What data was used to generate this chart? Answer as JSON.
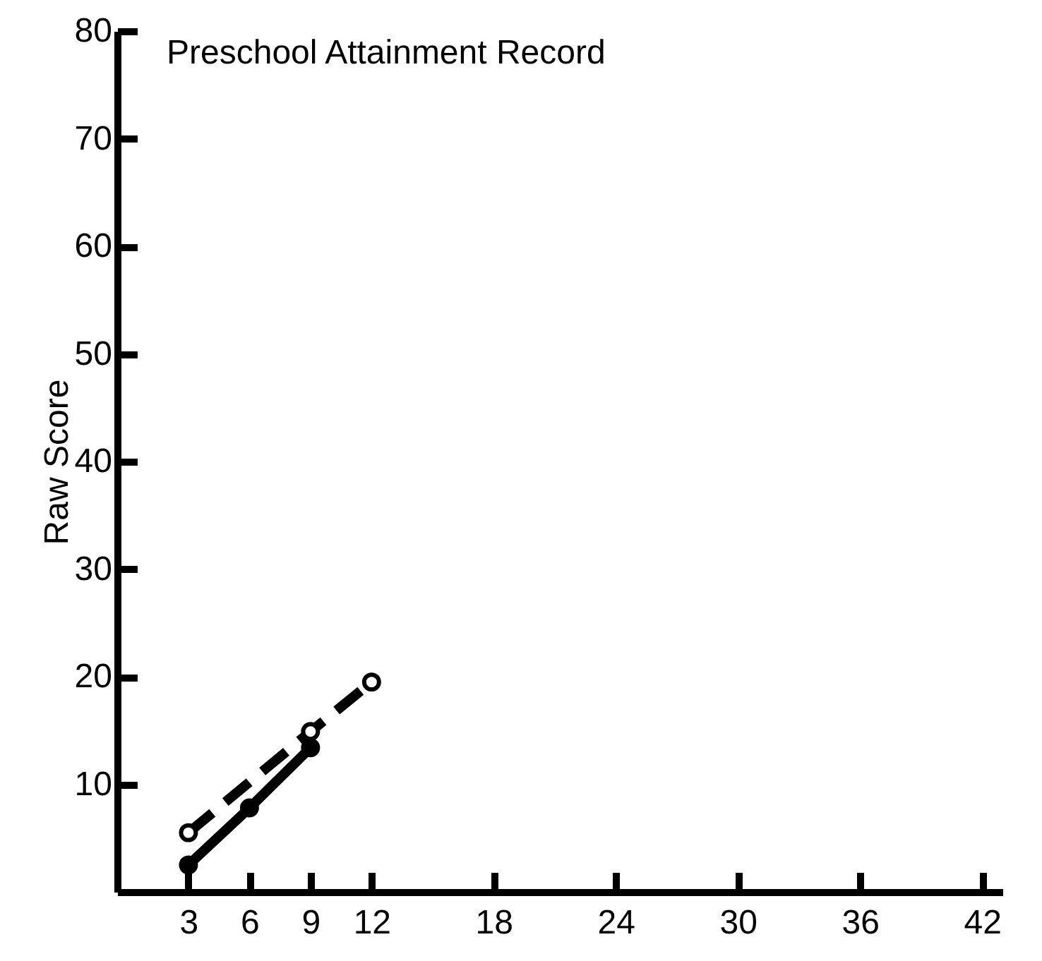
{
  "chart_data": {
    "type": "line",
    "title": "Preschool   Attainment Record",
    "ylabel": "Raw Score",
    "xlim": [
      -0.5,
      43
    ],
    "xticks": [
      3,
      6,
      9,
      12,
      18,
      24,
      30,
      36,
      42
    ],
    "ylim": [
      0,
      80
    ],
    "yticks": [
      10,
      20,
      30,
      40,
      50,
      60,
      70,
      80
    ],
    "grid": false,
    "marker": "circle",
    "series": [
      {
        "color": "#000000",
        "x": [
          3,
          6,
          9
        ],
        "values": [
          2.5,
          7.8,
          13.4
        ],
        "line_style": "solid"
      },
      {
        "color": "#000000",
        "x": [
          3,
          9,
          12
        ],
        "values": [
          5.5,
          14.9,
          19.5
        ],
        "line_style": "dashed"
      }
    ]
  }
}
